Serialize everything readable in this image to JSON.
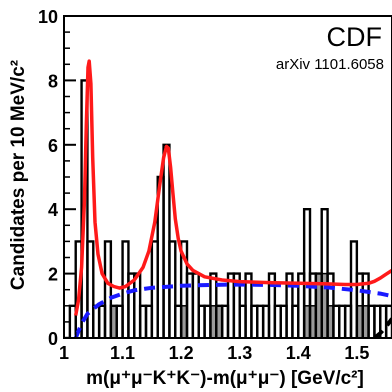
{
  "chart_data": {
    "type": "histogram",
    "xlabel": "m(μ⁺μ⁻K⁺K⁻)-m(μ⁺μ⁻) [GeV/c²]",
    "ylabel": "Candidates per 10 MeV/c²",
    "xlim": [
      1.0,
      1.56
    ],
    "ylim": [
      0,
      10
    ],
    "bin_width": 0.01,
    "x_ticks": [
      1,
      1.1,
      1.2,
      1.3,
      1.4,
      1.5
    ],
    "x_tick_labels": [
      "1",
      "1.1",
      "1.2",
      "1.3",
      "1.4",
      "1.5"
    ],
    "y_ticks": [
      0,
      2,
      4,
      6,
      8,
      10
    ],
    "y_tick_labels": [
      "0",
      "2",
      "4",
      "6",
      "8",
      "10"
    ],
    "annotations": {
      "experiment": "CDF",
      "reference": "arXiv 1101.6058"
    },
    "series": [
      {
        "kind": "data_histogram",
        "color": "#000000",
        "bin_lows": [
          1.0,
          1.01,
          1.02,
          1.03,
          1.04,
          1.05,
          1.06,
          1.07,
          1.08,
          1.09,
          1.1,
          1.11,
          1.12,
          1.13,
          1.14,
          1.15,
          1.16,
          1.17,
          1.18,
          1.19,
          1.2,
          1.21,
          1.22,
          1.23,
          1.24,
          1.25,
          1.26,
          1.27,
          1.28,
          1.29,
          1.3,
          1.31,
          1.32,
          1.33,
          1.34,
          1.35,
          1.36,
          1.37,
          1.38,
          1.39,
          1.4,
          1.41,
          1.42,
          1.43,
          1.44,
          1.45,
          1.46,
          1.47,
          1.48,
          1.49,
          1.5,
          1.51,
          1.52,
          1.53,
          1.54,
          1.55
        ],
        "values": [
          0,
          1,
          3,
          8,
          3,
          1,
          1,
          3,
          1,
          1,
          3,
          2,
          2,
          1,
          1,
          3,
          5,
          6,
          3,
          1,
          3,
          2,
          2,
          1,
          1,
          2,
          1,
          1,
          2,
          2,
          1,
          2,
          1,
          1,
          1,
          2,
          1,
          1,
          2,
          1,
          2,
          4,
          2,
          2,
          4,
          2,
          1,
          1,
          1,
          3,
          2,
          2,
          1,
          1,
          1,
          1
        ]
      },
      {
        "kind": "shaded_histogram",
        "color": "#9a9a9a",
        "bin_lows": [
          1.08,
          1.2,
          1.25,
          1.26,
          1.41,
          1.42,
          1.43,
          1.44,
          1.45,
          1.5,
          1.51
        ],
        "values": [
          1,
          1,
          1,
          1,
          1,
          1,
          2,
          2,
          1,
          1,
          1
        ]
      },
      {
        "kind": "fit_curve",
        "color": "#ff1a1a",
        "x": [
          1.02,
          1.025,
          1.03,
          1.035,
          1.038,
          1.041,
          1.043,
          1.046,
          1.049,
          1.053,
          1.058,
          1.065,
          1.075,
          1.085,
          1.095,
          1.105,
          1.12,
          1.135,
          1.145,
          1.155,
          1.163,
          1.17,
          1.175,
          1.178,
          1.182,
          1.186,
          1.19,
          1.195,
          1.2,
          1.21,
          1.22,
          1.24,
          1.27,
          1.3,
          1.35,
          1.4,
          1.45,
          1.48,
          1.5,
          1.52,
          1.53,
          1.54,
          1.55,
          1.56
        ],
        "y": [
          0.7,
          1.2,
          2.2,
          4.3,
          6.6,
          8.4,
          8.6,
          7.9,
          5.6,
          3.6,
          2.6,
          2.0,
          1.7,
          1.6,
          1.55,
          1.6,
          1.8,
          2.2,
          2.7,
          3.6,
          4.7,
          5.6,
          5.95,
          5.9,
          5.3,
          4.5,
          3.7,
          3.1,
          2.7,
          2.3,
          2.1,
          1.9,
          1.8,
          1.75,
          1.72,
          1.7,
          1.68,
          1.66,
          1.66,
          1.7,
          1.76,
          1.86,
          1.98,
          2.1
        ]
      },
      {
        "kind": "background_curve",
        "color": "#1a1aff",
        "style": "dashed",
        "x": [
          1.02,
          1.03,
          1.04,
          1.06,
          1.08,
          1.1,
          1.12,
          1.15,
          1.2,
          1.25,
          1.3,
          1.35,
          1.4,
          1.45,
          1.5,
          1.54,
          1.56
        ],
        "y": [
          0.0,
          0.45,
          0.75,
          1.05,
          1.25,
          1.38,
          1.48,
          1.56,
          1.62,
          1.65,
          1.66,
          1.65,
          1.62,
          1.57,
          1.48,
          1.38,
          1.3
        ]
      },
      {
        "kind": "other_curve",
        "color": "#000000",
        "style": "dashed",
        "x": [
          1.53,
          1.54,
          1.55,
          1.56
        ],
        "y": [
          0.0,
          0.15,
          0.35,
          0.6
        ]
      }
    ]
  }
}
